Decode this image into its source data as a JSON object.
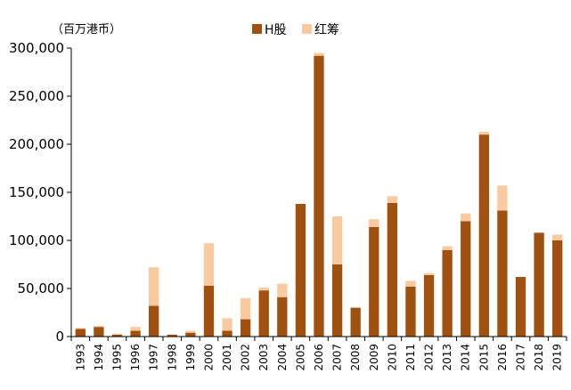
{
  "chart_data": {
    "type": "bar",
    "stacked": true,
    "ylabel": "（百万港币）",
    "ylim": [
      0,
      300000
    ],
    "yticks": [
      0,
      50000,
      100000,
      150000,
      200000,
      250000,
      300000
    ],
    "ytick_labels": [
      "0",
      "50,000",
      "100,000",
      "150,000",
      "200,000",
      "250,000",
      "300,000"
    ],
    "categories": [
      "1993",
      "1994",
      "1995",
      "1996",
      "1997",
      "1998",
      "1999",
      "2000",
      "2001",
      "2002",
      "2003",
      "2004",
      "2005",
      "2006",
      "2007",
      "2008",
      "2009",
      "2010",
      "2011",
      "2012",
      "2013",
      "2014",
      "2015",
      "2016",
      "2017",
      "2018",
      "2019"
    ],
    "legend_position": "top",
    "grid": false,
    "series": [
      {
        "name": "H股",
        "color": "#a0500f",
        "values": [
          8000,
          10000,
          2000,
          6000,
          32000,
          2000,
          4000,
          53000,
          6000,
          18000,
          48000,
          41000,
          138000,
          292000,
          75000,
          30000,
          114000,
          139000,
          52000,
          64000,
          90000,
          120000,
          210000,
          131000,
          62000,
          108000,
          100000
        ]
      },
      {
        "name": "红筹",
        "color": "#f9caa0",
        "values": [
          1000,
          1000,
          1000,
          4000,
          40000,
          0,
          2000,
          44000,
          13000,
          22000,
          3000,
          14000,
          0,
          3000,
          50000,
          0,
          8000,
          7000,
          6000,
          2000,
          4000,
          8000,
          3000,
          26000,
          0,
          0,
          6000
        ]
      }
    ]
  }
}
